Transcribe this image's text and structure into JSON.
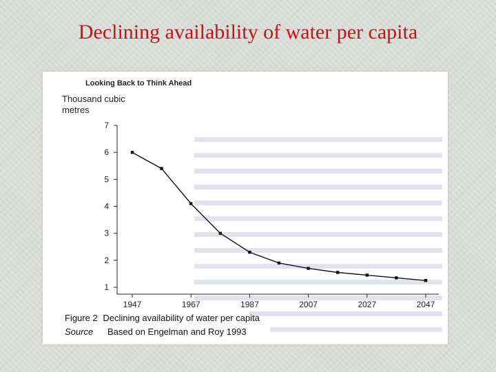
{
  "slide": {
    "title": "Declining availability of water per capita"
  },
  "photo": {
    "header": "Looking Back to Think Ahead",
    "figure_label": "Figure 2",
    "source_label": "Source"
  },
  "chart_data": {
    "type": "line",
    "title": "Declining availability of water per capita",
    "ylabel_line1": "Thousand cubic",
    "ylabel_line2": "metres",
    "xlabel": "",
    "x": [
      1947,
      1957,
      1967,
      1977,
      1987,
      1997,
      2007,
      2017,
      2027,
      2037,
      2047
    ],
    "x_ticks": [
      "1947",
      "1967",
      "1987",
      "2007",
      "2027",
      "2047"
    ],
    "y_ticks": [
      "1",
      "2",
      "3",
      "4",
      "5",
      "6",
      "7"
    ],
    "values": [
      6.0,
      5.4,
      4.1,
      3.0,
      2.3,
      1.9,
      1.7,
      1.55,
      1.45,
      1.35,
      1.25
    ],
    "xlim": [
      1947,
      2047
    ],
    "ylim": [
      1,
      7
    ],
    "grid": false,
    "caption_title": "Declining availability of water per capita",
    "source": "Based on Engelman and Roy 1993"
  }
}
